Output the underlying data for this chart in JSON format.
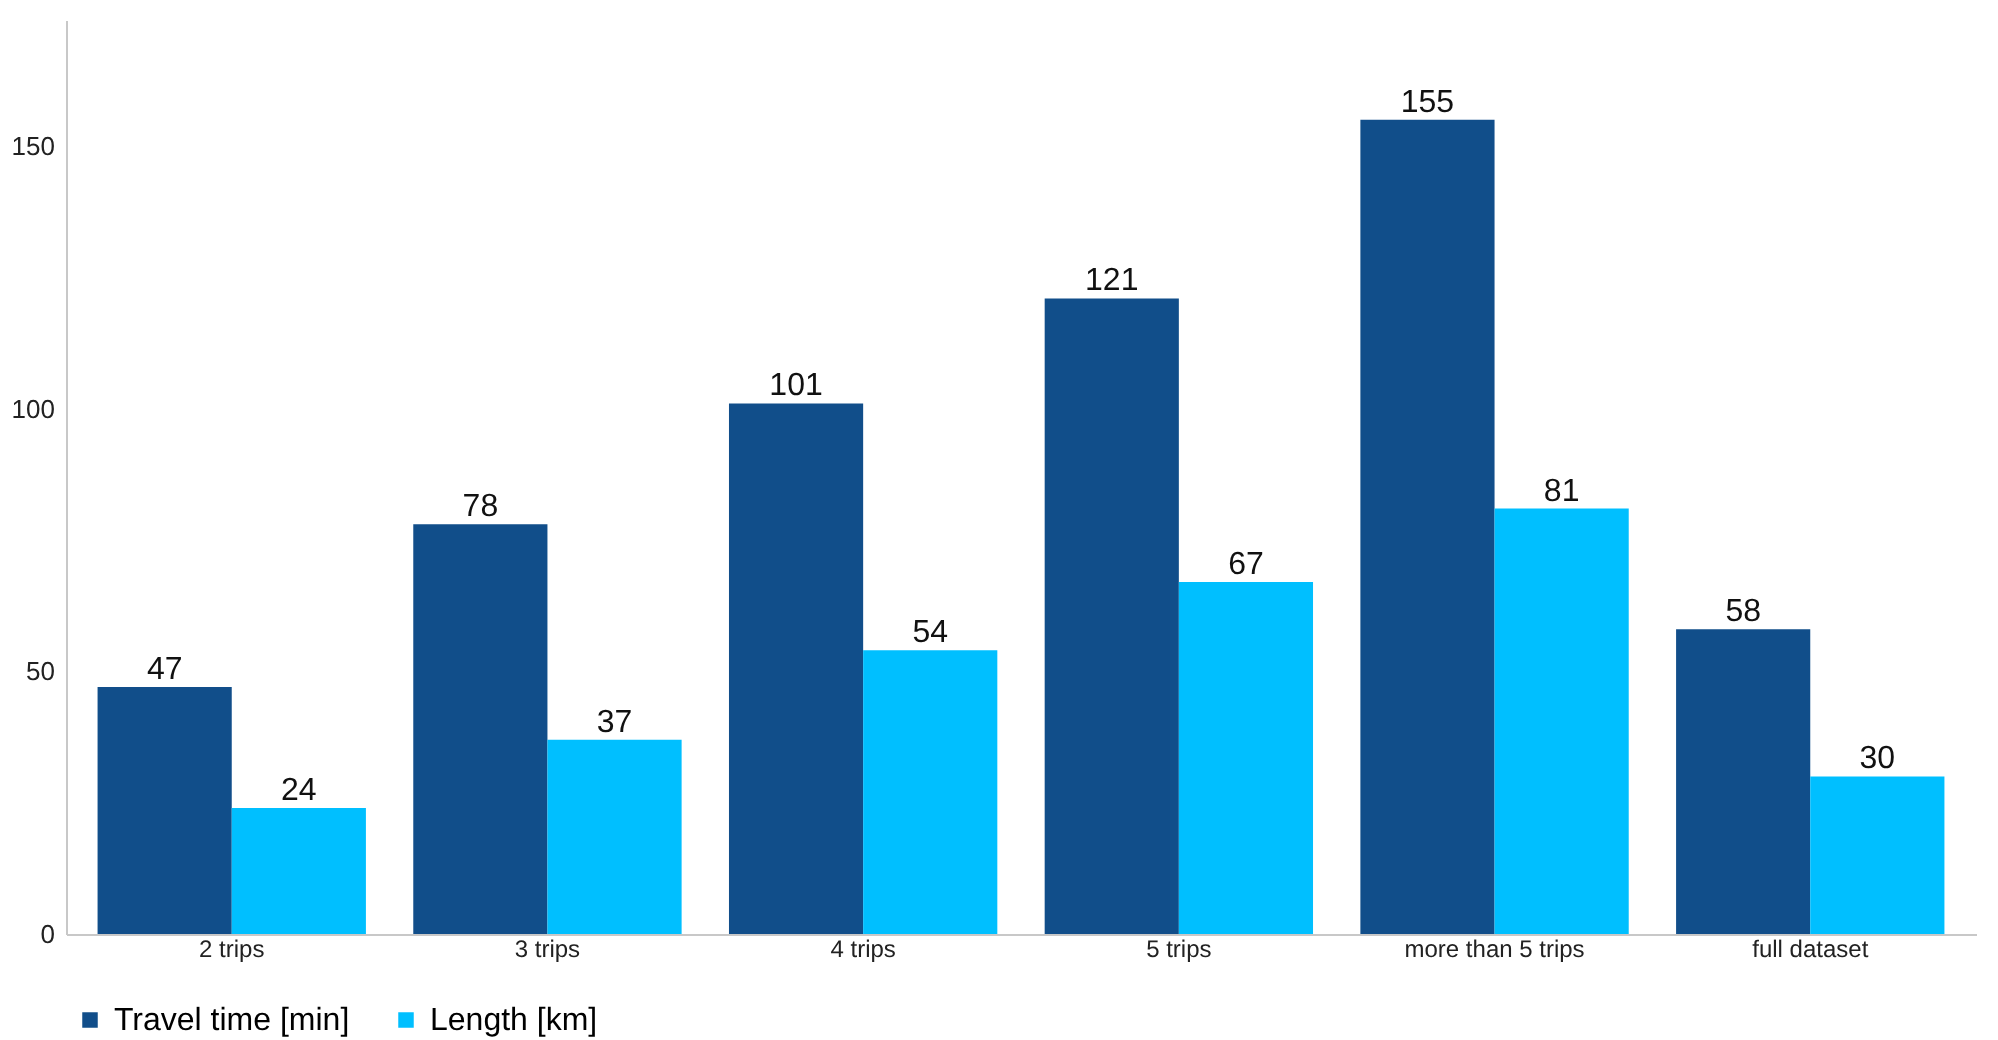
{
  "chart_data": {
    "type": "bar",
    "categories": [
      "2 trips",
      "3 trips",
      "4 trips",
      "5 trips",
      "more than 5 trips",
      "full dataset"
    ],
    "series": [
      {
        "name": "Travel time [min]",
        "color": "#114e8a",
        "values": [
          47,
          78,
          101,
          121,
          155,
          58
        ]
      },
      {
        "name": "Length [km]",
        "color": "#00bfff",
        "values": [
          24,
          37,
          54,
          67,
          81,
          30
        ]
      }
    ],
    "ylim": [
      0,
      174
    ],
    "yticks": [
      0,
      50,
      100,
      150
    ],
    "grid": false,
    "legend": "bottom",
    "data_labels": true
  }
}
